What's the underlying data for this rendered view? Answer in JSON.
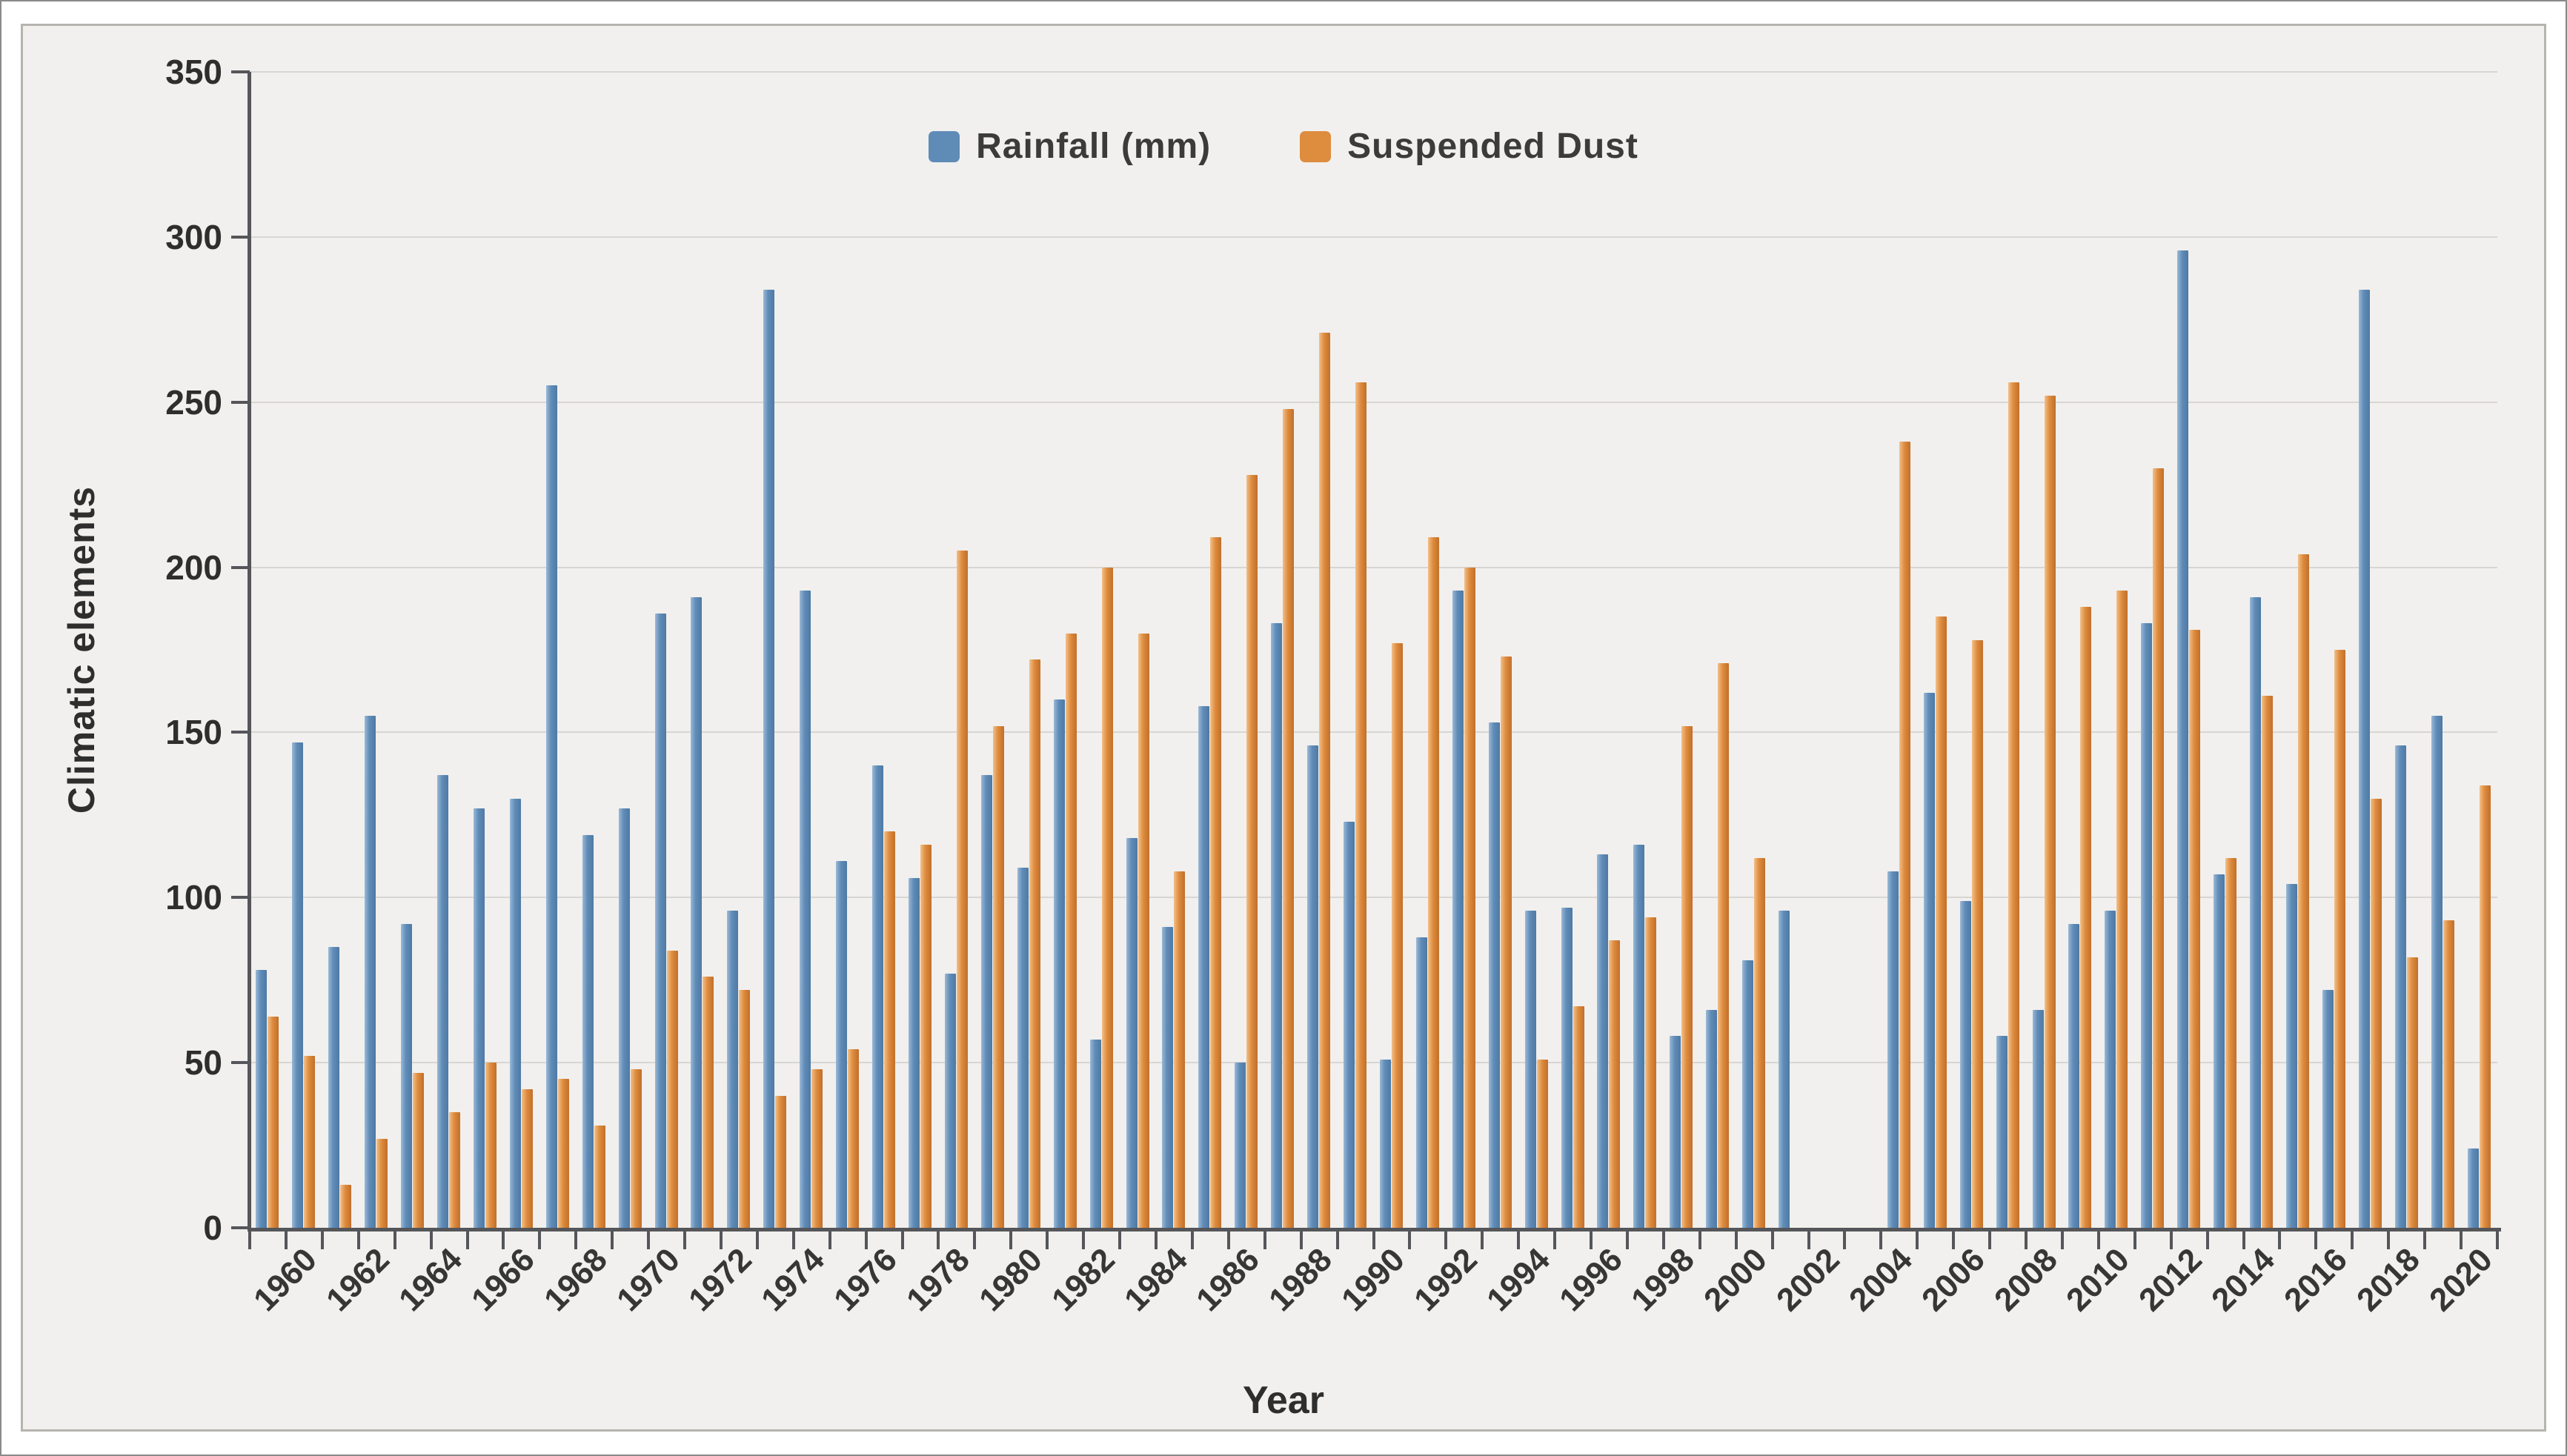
{
  "panel": {
    "background": "#f1f0ee",
    "frame_color": "#b6b4af"
  },
  "chart_data": {
    "type": "bar",
    "title": "",
    "xlabel": "Year",
    "ylabel": "Climatic elements",
    "ylim": [
      0,
      350
    ],
    "y_ticks": [
      0,
      50,
      100,
      150,
      200,
      250,
      300,
      350
    ],
    "grid": "horizontal",
    "legend_position": "top-center",
    "x_tick_labels": [
      "1960",
      "1962",
      "1964",
      "1966",
      "1968",
      "1970",
      "1972",
      "1974",
      "1976",
      "1978",
      "1980",
      "1982",
      "1984",
      "1986",
      "1988",
      "1990",
      "1992",
      "1994",
      "1996",
      "1998",
      "2000",
      "2002",
      "2004",
      "2006",
      "2008",
      "2010",
      "2012",
      "2014",
      "2016",
      "2018",
      "2020"
    ],
    "years": [
      1960,
      1961,
      1962,
      1963,
      1964,
      1965,
      1966,
      1967,
      1968,
      1969,
      1970,
      1971,
      1972,
      1973,
      1974,
      1975,
      1976,
      1977,
      1978,
      1979,
      1980,
      1981,
      1982,
      1983,
      1984,
      1985,
      1986,
      1987,
      1988,
      1989,
      1990,
      1991,
      1992,
      1993,
      1994,
      1995,
      1996,
      1997,
      1998,
      1999,
      2000,
      2001,
      2002,
      2003,
      2004,
      2005,
      2006,
      2007,
      2008,
      2009,
      2010,
      2011,
      2012,
      2013,
      2014,
      2015,
      2016,
      2017,
      2018,
      2019,
      2020,
      2021
    ],
    "series": [
      {
        "name": "Rainfall (mm)",
        "color": "#5f8bb7",
        "values": [
          78,
          147,
          85,
          155,
          92,
          137,
          127,
          130,
          255,
          119,
          127,
          186,
          191,
          96,
          284,
          193,
          111,
          140,
          106,
          77,
          137,
          109,
          160,
          57,
          118,
          91,
          158,
          50,
          183,
          146,
          123,
          51,
          88,
          193,
          153,
          96,
          97,
          113,
          116,
          58,
          66,
          81,
          96,
          null,
          null,
          108,
          162,
          99,
          58,
          66,
          92,
          96,
          183,
          296,
          107,
          191,
          104,
          72,
          284,
          146,
          155,
          24
        ]
      },
      {
        "name": "Suspended Dust",
        "color": "#de8c3e",
        "values": [
          64,
          52,
          13,
          27,
          47,
          35,
          50,
          42,
          45,
          31,
          48,
          84,
          76,
          72,
          40,
          48,
          54,
          120,
          116,
          205,
          152,
          172,
          180,
          200,
          180,
          108,
          209,
          228,
          248,
          271,
          256,
          177,
          209,
          200,
          173,
          51,
          67,
          87,
          94,
          152,
          171,
          112,
          null,
          null,
          null,
          238,
          185,
          178,
          256,
          252,
          188,
          193,
          230,
          181,
          112,
          161,
          204,
          175,
          130,
          82,
          93,
          134
        ]
      }
    ]
  }
}
